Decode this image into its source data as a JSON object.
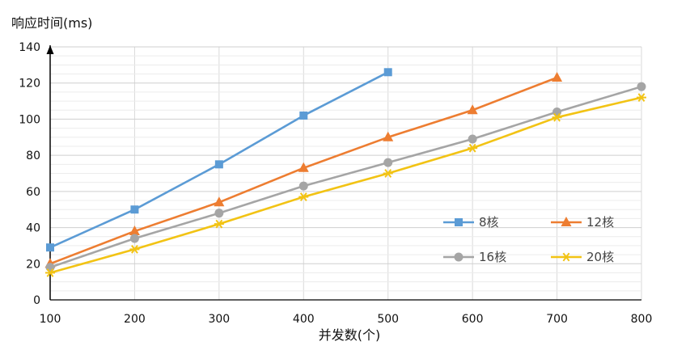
{
  "chart_data": {
    "type": "line",
    "title": "",
    "xlabel": "并发数(个)",
    "ylabel": "响应时间(ms)",
    "x_ticks": [
      "100",
      "200",
      "300",
      "400",
      "500",
      "600",
      "700",
      "800"
    ],
    "y_ticks": [
      "0",
      "20",
      "40",
      "60",
      "80",
      "100",
      "120",
      "140"
    ],
    "xlim": [
      100,
      800
    ],
    "ylim": [
      0,
      140
    ],
    "grid": true,
    "legend_position": "right",
    "series": [
      {
        "name": "8核",
        "color": "#5b9bd5",
        "marker": "square",
        "x": [
          100,
          200,
          300,
          400,
          500
        ],
        "y": [
          29,
          50,
          75,
          102,
          126
        ]
      },
      {
        "name": "12核",
        "color": "#ed7d31",
        "marker": "triangle",
        "x": [
          100,
          200,
          300,
          400,
          500,
          600,
          700
        ],
        "y": [
          20,
          38,
          54,
          73,
          90,
          105,
          123
        ]
      },
      {
        "name": "16核",
        "color": "#a5a5a5",
        "marker": "circle",
        "x": [
          100,
          200,
          300,
          400,
          500,
          600,
          700,
          800
        ],
        "y": [
          18,
          34,
          48,
          63,
          76,
          89,
          104,
          118
        ]
      },
      {
        "name": "20核",
        "color": "#f2c314",
        "marker": "star",
        "x": [
          100,
          200,
          300,
          400,
          500,
          600,
          700,
          800
        ],
        "y": [
          15,
          28,
          42,
          57,
          70,
          84,
          101,
          112
        ]
      }
    ]
  }
}
